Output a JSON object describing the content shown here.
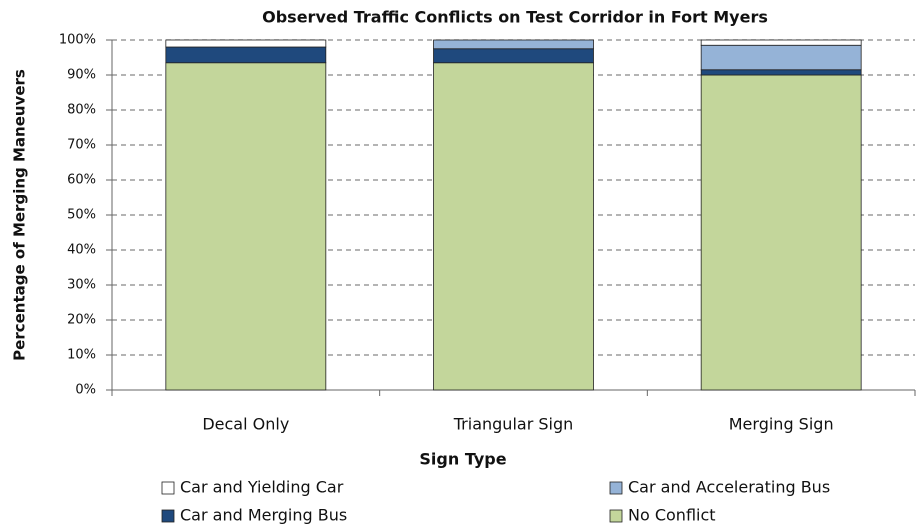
{
  "chart_data": {
    "type": "stacked_bar",
    "title": "Observed Traffic Conflicts on Test Corridor in Fort  Myers",
    "x_label": "Sign Type",
    "y_label": "Percentage of Merging Maneuvers",
    "categories": [
      "Decal Only",
      "Triangular Sign",
      "Merging Sign"
    ],
    "series": [
      {
        "name": "Car and Yielding Car",
        "color": "#ffffff",
        "values": [
          2,
          0,
          1.5
        ]
      },
      {
        "name": "Car and Accelerating Bus",
        "color": "#95b3d7",
        "values": [
          0,
          2.5,
          7
        ]
      },
      {
        "name": "Car and Merging Bus",
        "color": "#1f497d",
        "values": [
          4.5,
          4,
          1.5
        ]
      },
      {
        "name": "No Conflict",
        "color": "#c3d69b",
        "values": [
          93.5,
          93.5,
          90
        ]
      }
    ],
    "ylim": [
      0,
      100
    ],
    "yticks": [
      {
        "value": 0,
        "label": "0%"
      },
      {
        "value": 10,
        "label": "10%"
      },
      {
        "value": 20,
        "label": "20%"
      },
      {
        "value": 30,
        "label": "30%"
      },
      {
        "value": 40,
        "label": "40%"
      },
      {
        "value": 50,
        "label": "50%"
      },
      {
        "value": 60,
        "label": "60%"
      },
      {
        "value": 70,
        "label": "70%"
      },
      {
        "value": 80,
        "label": "80%"
      },
      {
        "value": 90,
        "label": "90%"
      },
      {
        "value": 100,
        "label": "100%"
      }
    ],
    "grid": true,
    "legend": "bottom"
  }
}
